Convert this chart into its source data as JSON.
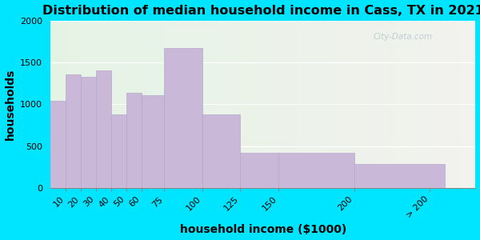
{
  "title": "Distribution of median household income in Cass, TX in 2021",
  "xlabel": "household income ($1000)",
  "ylabel": "households",
  "bin_left": [
    0,
    10,
    20,
    30,
    40,
    50,
    60,
    75,
    100,
    125,
    150,
    200
  ],
  "bin_right": [
    10,
    20,
    30,
    40,
    50,
    60,
    75,
    100,
    125,
    150,
    200,
    260
  ],
  "values": [
    1040,
    1360,
    1330,
    1410,
    880,
    1140,
    1110,
    1670,
    880,
    415,
    415,
    290
  ],
  "tick_positions": [
    10,
    20,
    30,
    40,
    50,
    60,
    75,
    100,
    125,
    150,
    200,
    250
  ],
  "tick_labels": [
    "10",
    "20",
    "30",
    "40",
    "50",
    "60",
    "75",
    "100",
    "125",
    "150",
    "200",
    "> 200"
  ],
  "bar_color": "#c9b8d8",
  "bar_edge_color": "#b8a8cc",
  "ylim": [
    0,
    2000
  ],
  "yticks": [
    0,
    500,
    1000,
    1500,
    2000
  ],
  "xlim": [
    0,
    280
  ],
  "background_outer": "#00e5ff",
  "bg_left_color": "#e5f3e5",
  "bg_right_color": "#f2f2ee",
  "title_fontsize": 11.5,
  "axis_label_fontsize": 10,
  "tick_fontsize": 8,
  "watermark_text": "City-Data.com",
  "watermark_color": "#b8c8cc"
}
